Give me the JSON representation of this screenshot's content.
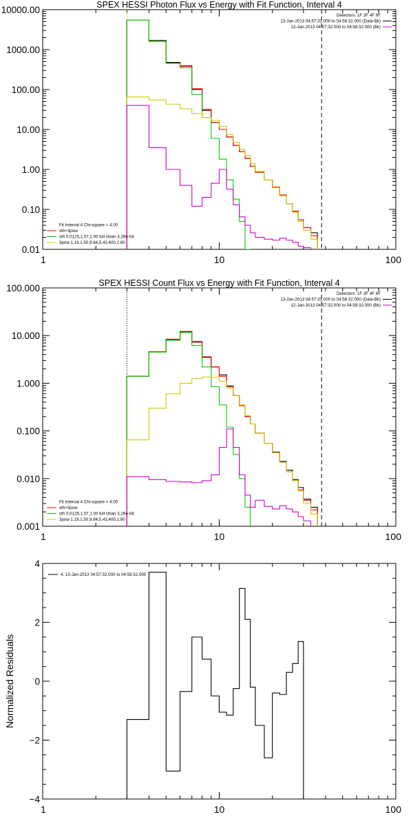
{
  "chart_data": [
    {
      "type": "line",
      "title": "SPEX HESSI Photon Flux vs Energy with Fit Function, Interval 4",
      "xscale": "log",
      "yscale": "log",
      "xlim": [
        1,
        100
      ],
      "ylim": [
        0.01,
        10000
      ],
      "xticks": [
        {
          "v": 1,
          "label": "1"
        },
        {
          "v": 10,
          "label": "10"
        },
        {
          "v": 100,
          "label": "100"
        }
      ],
      "yticks": [
        {
          "v": 0.01,
          "label": "0.01"
        },
        {
          "v": 0.1,
          "label": "0.10"
        },
        {
          "v": 1,
          "label": "1.00"
        },
        {
          "v": 10,
          "label": "10.00"
        },
        {
          "v": 100,
          "label": "100.00"
        },
        {
          "v": 1000,
          "label": "1000.00"
        },
        {
          "v": 10000,
          "label": "10000.00"
        }
      ],
      "vlines": [
        {
          "x": 3.0,
          "style": "dotted",
          "color": "#cc9900"
        },
        {
          "x": 38.0,
          "style": "dashed",
          "color": "#000000"
        }
      ],
      "legend_tr": [
        "Detectors: 1F 3F 4F 8F",
        "13-Jan-2013 04:57:32.000 to 04:58:32.000 (Data-Bk)",
        "12-Jan-2013 04:57:32.000 to 04:58:32.000 (Bk)"
      ],
      "legend_tr_swatch": [
        null,
        "#000000",
        "#cc00cc"
      ],
      "legend_bl": [
        {
          "text": "Fit Interval  4   Chi-square = 4.00",
          "color": null
        },
        {
          "text": "vth+3pow",
          "color": "#ff0000"
        },
        {
          "text": "vth 0.0125,1.07,1.00  full chian 3.26e-04",
          "color": "#00cc00"
        },
        {
          "text": "3pow 1.19,1.50,9.84,5.43,400,1.80",
          "color": "#cccc00"
        }
      ],
      "edges": [
        3.0,
        4.0,
        5.0,
        6.0,
        7.0,
        8.0,
        9.0,
        10.0,
        11.0,
        12.0,
        13.0,
        14.0,
        15.0,
        16.0,
        18.0,
        20.0,
        22.0,
        24.0,
        26.0,
        28.0,
        30.0,
        33.0,
        36.0,
        39.0,
        42.0
      ],
      "series": [
        {
          "name": "Data-Bk",
          "color": "#000000",
          "values": [
            5500,
            1700,
            480,
            390,
            100,
            30,
            15,
            10,
            6.5,
            4.0,
            2.8,
            1.9,
            1.2,
            0.85,
            0.55,
            0.36,
            0.23,
            0.14,
            0.09,
            0.055,
            0.035,
            0.026,
            null,
            null
          ]
        },
        {
          "name": "vth+3pow",
          "color": "#ff0000",
          "values": [
            5500,
            1600,
            460,
            380,
            105,
            32,
            15,
            10,
            6.5,
            4.0,
            2.8,
            1.9,
            1.2,
            0.85,
            0.55,
            0.36,
            0.23,
            0.14,
            0.09,
            0.055,
            0.035,
            0.022,
            null,
            null
          ]
        },
        {
          "name": "vth",
          "color": "#00cc00",
          "values": [
            5500,
            1600,
            450,
            350,
            75,
            20,
            6,
            1.8,
            0.55,
            0.18,
            0.05,
            0.01,
            0.003,
            null,
            null,
            null,
            null,
            null,
            null,
            null,
            null,
            null,
            null,
            null
          ]
        },
        {
          "name": "3pow",
          "color": "#cccc00",
          "values": [
            65,
            55,
            43,
            33,
            25,
            20,
            17,
            12,
            7.5,
            4.8,
            3.2,
            2.2,
            1.4,
            0.9,
            0.55,
            0.35,
            0.22,
            0.14,
            0.085,
            0.05,
            0.03,
            0.018,
            null,
            null
          ]
        },
        {
          "name": "Bk",
          "color": "#cc00cc",
          "values": [
            40,
            3.5,
            1.0,
            0.4,
            0.12,
            0.2,
            0.45,
            1.0,
            0.32,
            0.13,
            0.065,
            0.04,
            0.026,
            0.02,
            0.018,
            0.017,
            0.019,
            0.017,
            0.015,
            0.012,
            0.011,
            null,
            null,
            null
          ]
        }
      ]
    },
    {
      "type": "line",
      "title": "SPEX HESSI Count Flux vs Energy with Fit Function, Interval 4",
      "xscale": "log",
      "yscale": "log",
      "xlim": [
        1,
        100
      ],
      "ylim": [
        0.001,
        100
      ],
      "xticks": [
        {
          "v": 1,
          "label": "1"
        },
        {
          "v": 10,
          "label": "10"
        },
        {
          "v": 100,
          "label": "100"
        }
      ],
      "yticks": [
        {
          "v": 0.001,
          "label": "0.001"
        },
        {
          "v": 0.01,
          "label": "0.010"
        },
        {
          "v": 0.1,
          "label": "0.100"
        },
        {
          "v": 1,
          "label": "1.000"
        },
        {
          "v": 10,
          "label": "10.000"
        },
        {
          "v": 100,
          "label": "100.000"
        }
      ],
      "vlines": [
        {
          "x": 3.0,
          "style": "dotted",
          "color": "#000000"
        },
        {
          "x": 38.0,
          "style": "dashed",
          "color": "#000000"
        }
      ],
      "legend_tr": [
        "Detectors: 1F 3F 4F 8F",
        "13-Jan-2013 04:57:32.000 to 04:58:32.000 (Data-Bk)",
        "12-Jan-2013 04:57:32.000 to 04:58:32.000 (Bk)"
      ],
      "legend_tr_swatch": [
        null,
        "#000000",
        "#cc00cc"
      ],
      "legend_bl": [
        {
          "text": "Fit Interval  4   Chi-square = 4.00",
          "color": null
        },
        {
          "text": "vth+3pow",
          "color": "#ff0000"
        },
        {
          "text": "vth 0.0125,1.07,1.00  full chian 3.26e-04",
          "color": "#00cc00"
        },
        {
          "text": "3pow 1.19,1.50,9.84,5.43,400,1.80",
          "color": "#cccc00"
        }
      ],
      "edges": [
        3.0,
        4.0,
        5.0,
        6.0,
        7.0,
        8.0,
        9.0,
        10.0,
        11.0,
        12.0,
        13.0,
        14.0,
        15.0,
        16.0,
        18.0,
        20.0,
        22.0,
        24.0,
        26.0,
        28.0,
        30.0,
        33.0,
        36.0,
        39.0,
        42.0
      ],
      "series": [
        {
          "name": "Data-Bk",
          "color": "#000000",
          "values": [
            1.4,
            4.6,
            8.2,
            12.0,
            7.3,
            3.5,
            2.2,
            1.5,
            0.88,
            0.55,
            0.34,
            0.2,
            0.14,
            0.09,
            0.055,
            0.036,
            0.023,
            0.015,
            0.0095,
            0.0065,
            0.0037,
            0.0025,
            null,
            null
          ]
        },
        {
          "name": "vth+3pow",
          "color": "#ff0000",
          "values": [
            1.4,
            4.6,
            8.4,
            12.2,
            7.5,
            3.6,
            2.2,
            1.4,
            0.85,
            0.55,
            0.34,
            0.2,
            0.14,
            0.09,
            0.055,
            0.035,
            0.022,
            0.014,
            0.009,
            0.0058,
            0.0035,
            0.0022,
            null,
            null
          ]
        },
        {
          "name": "vth",
          "color": "#00cc00",
          "values": [
            1.4,
            4.5,
            8.0,
            11.5,
            6.2,
            2.2,
            0.85,
            0.35,
            0.12,
            0.032,
            0.01,
            0.0025,
            0.0009,
            null,
            null,
            null,
            null,
            null,
            null,
            null,
            null,
            null,
            null,
            null
          ]
        },
        {
          "name": "3pow",
          "color": "#cccc00",
          "values": [
            0.065,
            0.3,
            0.6,
            1.0,
            1.25,
            1.35,
            1.32,
            1.1,
            0.8,
            0.55,
            0.35,
            0.21,
            0.14,
            0.09,
            0.055,
            0.035,
            0.022,
            0.014,
            0.009,
            0.0055,
            0.003,
            0.0018,
            0.0009,
            null
          ]
        },
        {
          "name": "Bk",
          "color": "#cc00cc",
          "values": [
            0.011,
            0.0095,
            0.0087,
            0.0085,
            0.0082,
            0.009,
            0.012,
            0.045,
            0.11,
            0.045,
            0.012,
            0.0045,
            0.0025,
            0.0035,
            0.0026,
            0.0023,
            0.0027,
            0.0023,
            0.002,
            0.0016,
            0.0013,
            null,
            null,
            null
          ]
        }
      ]
    },
    {
      "type": "line",
      "title": "",
      "ylabel": "Normalized Residuals",
      "xscale": "log",
      "yscale": "linear",
      "xlim": [
        1,
        100
      ],
      "ylim": [
        -4,
        4
      ],
      "xticks": [
        {
          "v": 1,
          "label": "1"
        },
        {
          "v": 10,
          "label": "10"
        },
        {
          "v": 100,
          "label": "100"
        }
      ],
      "yticks": [
        {
          "v": -4,
          "label": "−4"
        },
        {
          "v": -2,
          "label": "−2"
        },
        {
          "v": 0,
          "label": "0"
        },
        {
          "v": 2,
          "label": "2"
        },
        {
          "v": 4,
          "label": "4"
        }
      ],
      "legend_tl": "4, 13-Jan-2013 04:57:32.000 to 04:58:32.000",
      "edges": [
        3.0,
        4.0,
        5.0,
        6.0,
        7.0,
        8.0,
        9.0,
        10.0,
        11.0,
        12.0,
        13.0,
        14.0,
        15.0,
        16.0,
        18.0,
        20.0,
        22.0,
        24.0,
        26.0,
        28.0,
        30.0,
        33.0,
        36.0,
        39.0
      ],
      "series": [
        {
          "name": "residuals",
          "color": "#000000",
          "values": [
            -1.3,
            3.7,
            -3.05,
            -0.35,
            1.5,
            0.75,
            -0.5,
            -1.05,
            -1.15,
            -0.25,
            3.15,
            2.1,
            -0.2,
            -1.5,
            -2.6,
            -0.4,
            -0.45,
            0.3,
            0.6,
            1.35,
            null,
            null,
            null
          ]
        }
      ]
    }
  ]
}
